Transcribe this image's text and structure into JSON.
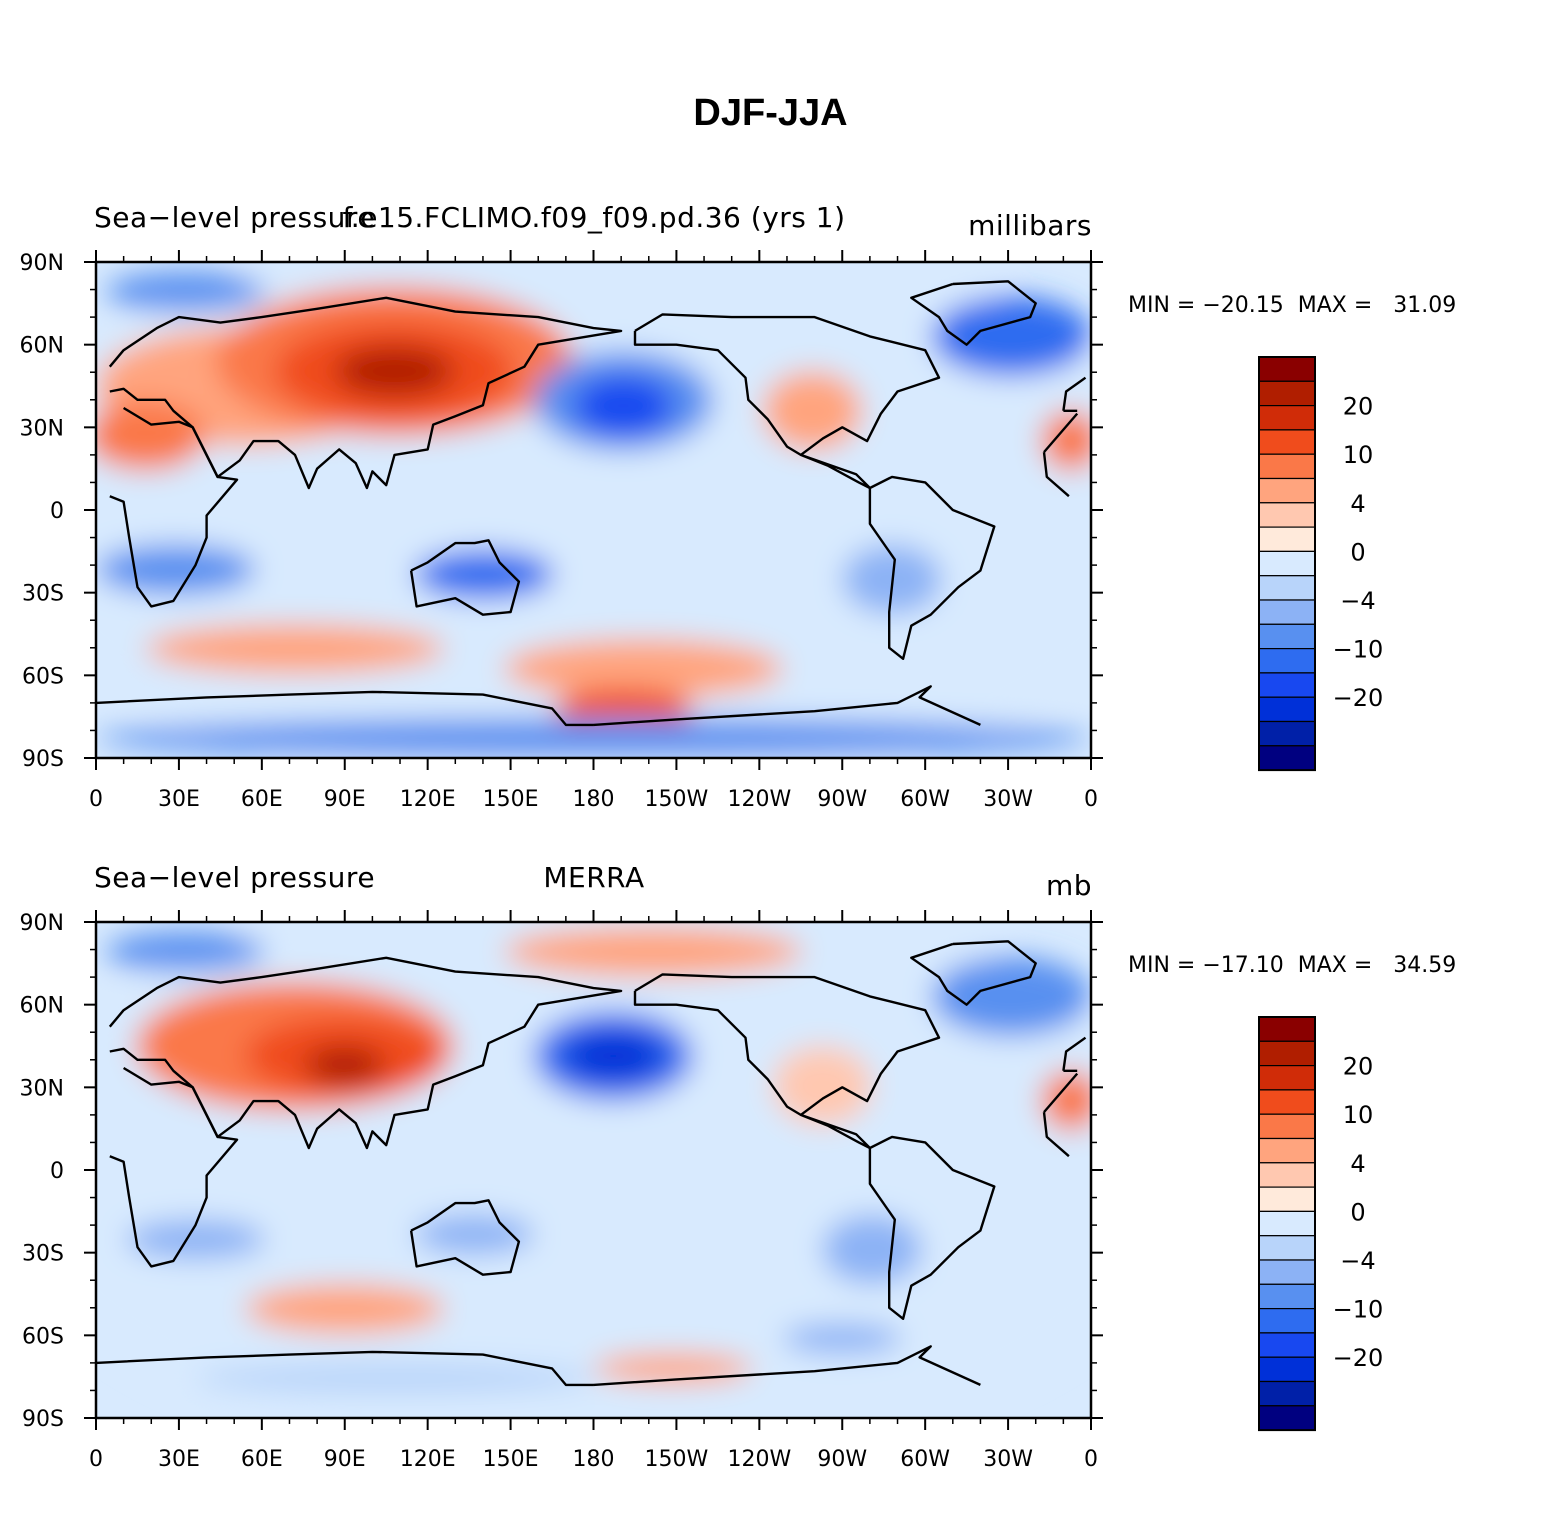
{
  "title": "DJF-JJA",
  "colors": [
    "#000080",
    "#0020a8",
    "#0030d8",
    "#1848f0",
    "#2e6cf0",
    "#5890f0",
    "#8cb2f5",
    "#b8d4fa",
    "#d8eafe",
    "#ffeadb",
    "#ffc8b0",
    "#ffa47e",
    "#fa7848",
    "#f04c1c",
    "#d02c08",
    "#b01e00",
    "#8a0000"
  ],
  "colorbar_labels": [
    "20",
    "10",
    "4",
    "0",
    "−4",
    "−10",
    "−20"
  ],
  "x_ticks": [
    "0",
    "30E",
    "60E",
    "90E",
    "120E",
    "150E",
    "180",
    "150W",
    "120W",
    "90W",
    "60W",
    "30W",
    "0"
  ],
  "y_ticks": [
    "90N",
    "60N",
    "30N",
    "0",
    "30S",
    "60S",
    "90S"
  ],
  "panels": [
    {
      "left_label": "Sea−level pressure",
      "center_label": "f.e15.FCLIMO.f09_f09.pd.36 (yrs 1)",
      "right_label": "millibars",
      "min_text": "MIN = −20.15",
      "max_text": "MAX =   31.09"
    },
    {
      "left_label": "Sea−level pressure",
      "center_label": "MERRA",
      "right_label": "mb",
      "min_text": "MIN = −17.10",
      "max_text": "MAX =   34.59"
    }
  ]
}
